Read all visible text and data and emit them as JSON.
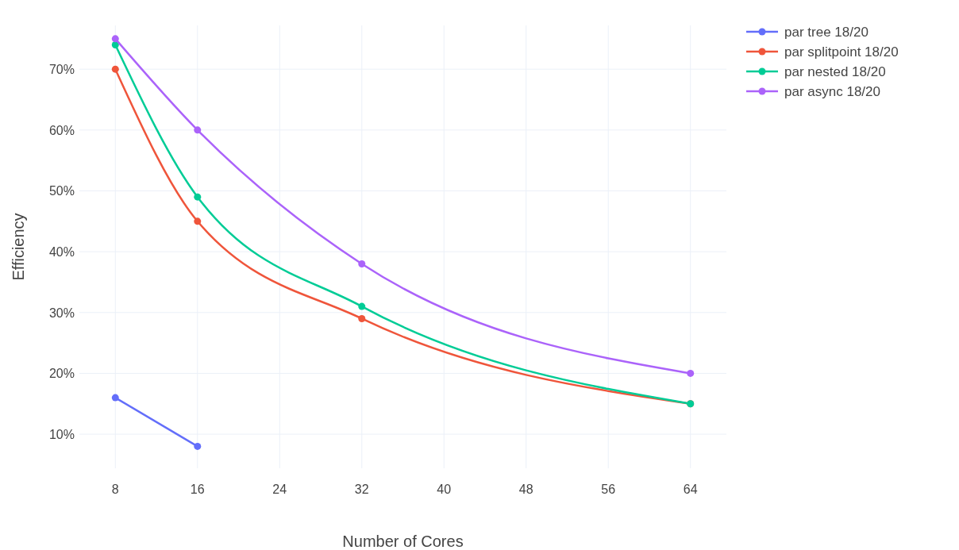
{
  "chart_data": {
    "type": "line",
    "xlabel": "Number of Cores",
    "ylabel": "Efficiency",
    "x": [
      8,
      16,
      32,
      64
    ],
    "series": [
      {
        "name": "par tree 18/20",
        "color": "#636efa",
        "values": [
          16,
          8,
          null,
          null
        ]
      },
      {
        "name": "par splitpoint 18/20",
        "color": "#ef553b",
        "values": [
          70,
          45,
          29,
          15
        ]
      },
      {
        "name": "par nested 18/20",
        "color": "#00cc96",
        "values": [
          74,
          49,
          31,
          15
        ]
      },
      {
        "name": "par async 18/20",
        "color": "#ab63fa",
        "values": [
          75,
          60,
          38,
          20
        ]
      }
    ],
    "xlim": [
      4.5,
      67.5
    ],
    "xticks": [
      8,
      16,
      24,
      32,
      40,
      48,
      56,
      64
    ],
    "ylim": [
      4.4,
      77.2
    ],
    "yticks": [
      {
        "value": 10,
        "label": "10%"
      },
      {
        "value": 20,
        "label": "20%"
      },
      {
        "value": 30,
        "label": "30%"
      },
      {
        "value": 40,
        "label": "40%"
      },
      {
        "value": 50,
        "label": "50%"
      },
      {
        "value": 60,
        "label": "60%"
      },
      {
        "value": 70,
        "label": "70%"
      }
    ],
    "grid": true,
    "legend": "top right",
    "marker": "circle",
    "line_style": "solid"
  }
}
